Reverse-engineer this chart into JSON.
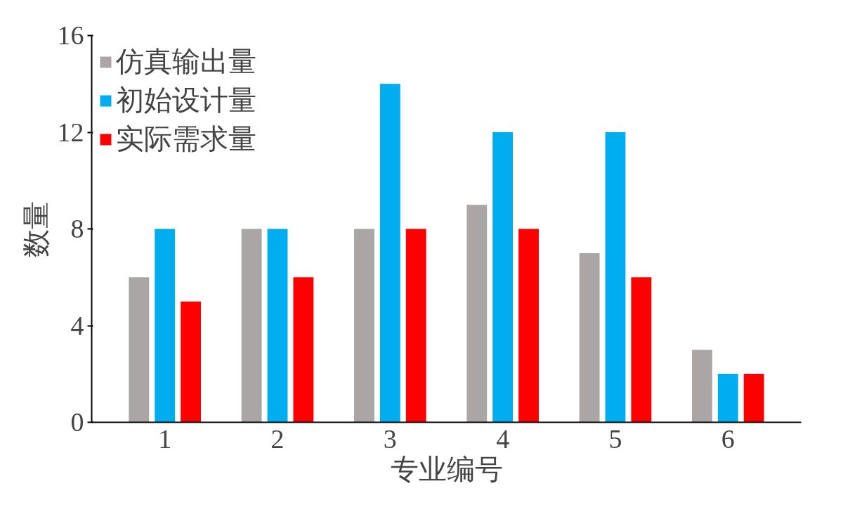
{
  "chart_data": {
    "type": "bar",
    "xlabel": "专业编号",
    "ylabel": "数量",
    "categories": [
      "1",
      "2",
      "3",
      "4",
      "5",
      "6"
    ],
    "series": [
      {
        "name": "仿真输出量",
        "color": "#aaa6a6",
        "values": [
          6,
          8,
          8,
          9,
          7,
          3
        ]
      },
      {
        "name": "初始设计量",
        "color": "#00aeef",
        "values": [
          8,
          8,
          14,
          12,
          12,
          2
        ]
      },
      {
        "name": "实际需求量",
        "color": "#ff0000",
        "values": [
          5,
          6,
          8,
          8,
          6,
          2
        ]
      }
    ],
    "ylim": [
      0,
      16
    ],
    "yticks": [
      0,
      4,
      8,
      12,
      16
    ],
    "grid": false,
    "legend": "top left"
  }
}
